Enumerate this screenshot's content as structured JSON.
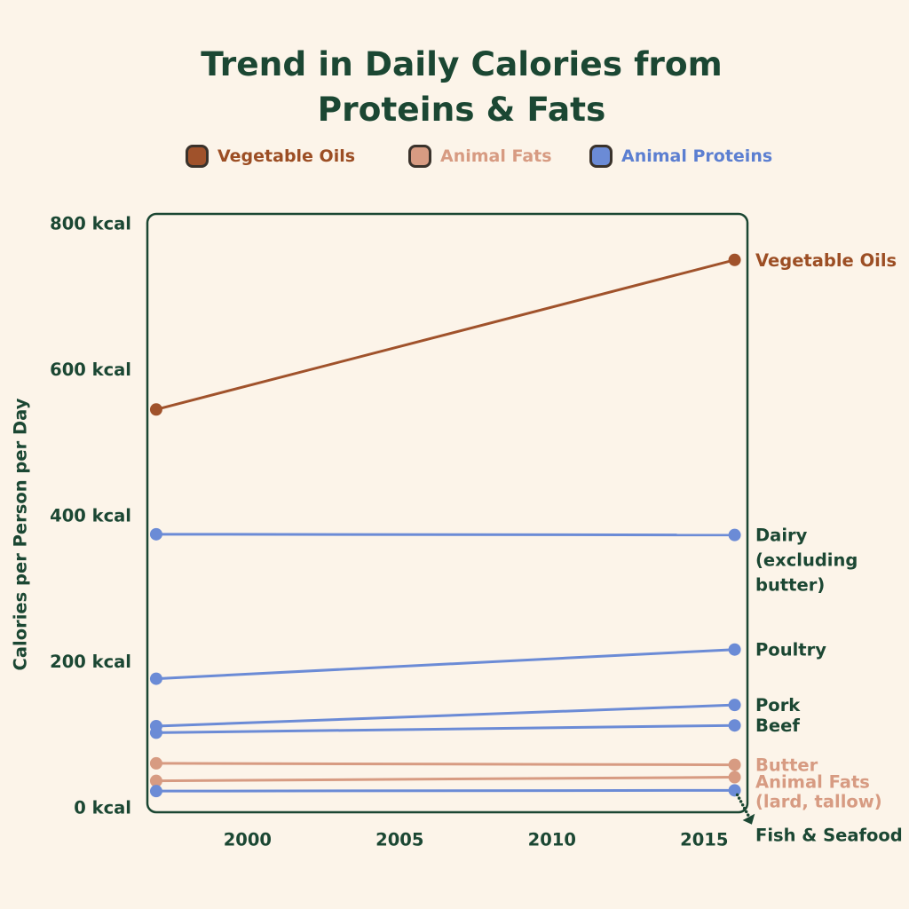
{
  "chart_data": {
    "type": "line",
    "title": "Trend in Daily Calories from\nProteins & Fats",
    "ylabel": "Calories per Person per Day",
    "x": [
      1997,
      2016
    ],
    "x_ticks": [
      2000,
      2005,
      2010,
      2015
    ],
    "y_ticks": [
      0,
      200,
      400,
      600,
      800
    ],
    "y_tick_suffix": " kcal",
    "xlim": [
      1996.71,
      2016.42
    ],
    "ylim": [
      -7,
      813
    ],
    "grid": false,
    "legend_position": "top",
    "legend": [
      {
        "label": "Vegetable Oils",
        "swatch_color": "#A0522B",
        "text_color": "#9C4E24"
      },
      {
        "label": "Animal Fats",
        "swatch_color": "#D79B82",
        "text_color": "#D79B82"
      },
      {
        "label": "Animal Proteins",
        "swatch_color": "#6B8BD6",
        "text_color": "#5C7FD1"
      }
    ],
    "series": [
      {
        "name": "Vegetable Oils",
        "group": "Vegetable Oils",
        "color": "#A0522B",
        "values": [
          545,
          750
        ],
        "label": {
          "lines": [
            "Vegetable Oils"
          ],
          "color": "#9C4E24"
        }
      },
      {
        "name": "Dairy (excluding butter)",
        "group": "Animal Proteins",
        "color": "#6B8BD6",
        "values": [
          374,
          373
        ],
        "label": {
          "lines": [
            "Dairy",
            "(excluding",
            "butter)"
          ],
          "color": "#1B4733",
          "line_height": 28
        }
      },
      {
        "name": "Poultry",
        "group": "Animal Proteins",
        "color": "#6B8BD6",
        "values": [
          176,
          216
        ],
        "label": {
          "lines": [
            "Poultry"
          ],
          "color": "#1B4733"
        }
      },
      {
        "name": "Pork",
        "group": "Animal Proteins",
        "color": "#6B8BD6",
        "values": [
          111,
          140
        ],
        "label": {
          "lines": [
            "Pork"
          ],
          "color": "#1B4733"
        }
      },
      {
        "name": "Beef",
        "group": "Animal Proteins",
        "color": "#6B8BD6",
        "values": [
          102,
          112
        ],
        "label": {
          "lines": [
            "Beef"
          ],
          "color": "#1B4733"
        }
      },
      {
        "name": "Butter",
        "group": "Animal Fats",
        "color": "#D79B82",
        "values": [
          60,
          58
        ],
        "label": {
          "lines": [
            "Butter"
          ],
          "color": "#D79B82"
        }
      },
      {
        "name": "Animal Fats (lard, tallow)",
        "group": "Animal Fats",
        "color": "#D79B82",
        "values": [
          36,
          41
        ],
        "label": {
          "lines": [
            "Animal Fats",
            "(lard, tallow)"
          ],
          "color": "#D79B82",
          "line_height": 22,
          "dy": 5
        }
      },
      {
        "name": "Fish & Seafood",
        "group": "Animal Proteins",
        "color": "#6B8BD6",
        "values": [
          22,
          23
        ],
        "label": {
          "lines": [
            "Fish & Seafood"
          ],
          "color": "#1B4733",
          "dy": 50,
          "arrow": true
        }
      }
    ],
    "colors": {
      "background": "#FCF4E9",
      "text_dark_green": "#1B4733",
      "plot_border": "#1B4733",
      "swatch_border": "#3A322B"
    }
  }
}
